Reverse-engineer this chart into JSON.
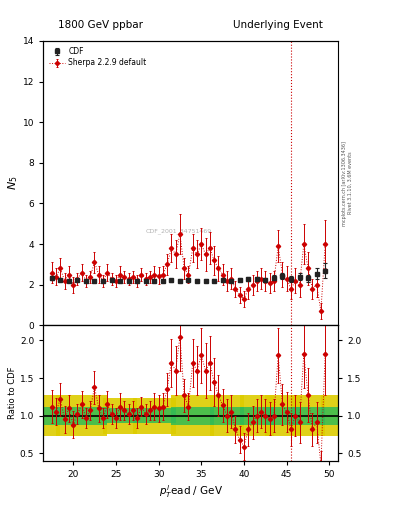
{
  "title_left": "1800 GeV ppbar",
  "title_right": "Underlying Event",
  "ylabel_main": "$N_5$",
  "ylabel_ratio": "Ratio to CDF",
  "xlabel": "$p_T^l$ead / GeV",
  "xlim": [
    16.5,
    51
  ],
  "ylim_main": [
    0,
    14
  ],
  "ylim_ratio": [
    0.4,
    2.2
  ],
  "yticks_main": [
    0,
    2,
    4,
    6,
    8,
    10,
    12,
    14
  ],
  "yticks_ratio": [
    0.5,
    1.0,
    1.5,
    2.0
  ],
  "watermark": "CDF_2001_84751469",
  "right_label": "Rivet 3.1.10, 3.6M events",
  "right_label2": "mcplots.cern.ch [arXiv:1306.3436]",
  "vline_x": 45.5,
  "cdf_x": [
    17.5,
    18.5,
    19.5,
    20.5,
    21.5,
    22.5,
    23.5,
    24.5,
    25.5,
    26.5,
    27.5,
    28.5,
    29.5,
    30.5,
    31.5,
    32.5,
    33.5,
    34.5,
    35.5,
    36.5,
    37.5,
    38.5,
    39.5,
    40.5,
    41.5,
    42.5,
    43.5,
    44.5,
    45.5,
    46.5,
    47.5,
    48.5,
    49.5
  ],
  "cdf_y": [
    2.35,
    2.25,
    2.2,
    2.25,
    2.2,
    2.2,
    2.2,
    2.25,
    2.2,
    2.2,
    2.2,
    2.2,
    2.2,
    2.2,
    2.22,
    2.2,
    2.25,
    2.2,
    2.2,
    2.2,
    2.22,
    2.2,
    2.25,
    2.28,
    2.3,
    2.22,
    2.35,
    2.45,
    2.28,
    2.4,
    2.32,
    2.55,
    2.7
  ],
  "cdf_yerr": [
    0.1,
    0.08,
    0.07,
    0.07,
    0.07,
    0.07,
    0.07,
    0.07,
    0.07,
    0.07,
    0.07,
    0.07,
    0.07,
    0.07,
    0.07,
    0.07,
    0.07,
    0.07,
    0.07,
    0.07,
    0.07,
    0.07,
    0.07,
    0.08,
    0.1,
    0.1,
    0.12,
    0.15,
    0.13,
    0.18,
    0.18,
    0.28,
    0.35
  ],
  "sherpa_x": [
    17.5,
    18.0,
    18.5,
    19.0,
    19.5,
    20.0,
    20.5,
    21.0,
    21.5,
    22.0,
    22.5,
    23.0,
    23.5,
    24.0,
    24.5,
    25.0,
    25.5,
    26.0,
    26.5,
    27.0,
    27.5,
    28.0,
    28.5,
    29.0,
    29.5,
    30.0,
    30.5,
    31.0,
    31.5,
    32.0,
    32.5,
    33.0,
    33.5,
    34.0,
    34.5,
    35.0,
    35.5,
    36.0,
    36.5,
    37.0,
    37.5,
    38.0,
    38.5,
    39.0,
    39.5,
    40.0,
    40.5,
    41.0,
    41.5,
    42.0,
    42.5,
    43.0,
    43.5,
    44.0,
    44.5,
    45.0,
    45.5,
    46.0,
    46.5,
    47.0,
    47.5,
    48.0,
    48.5,
    49.0,
    49.5
  ],
  "sherpa_y": [
    2.6,
    2.4,
    2.8,
    2.2,
    2.5,
    2.0,
    2.3,
    2.6,
    2.2,
    2.4,
    3.1,
    2.5,
    2.2,
    2.6,
    2.3,
    2.2,
    2.5,
    2.4,
    2.3,
    2.4,
    2.2,
    2.5,
    2.3,
    2.4,
    2.5,
    2.45,
    2.5,
    3.0,
    3.8,
    3.5,
    4.5,
    2.8,
    2.5,
    3.8,
    3.5,
    4.0,
    3.5,
    3.8,
    3.2,
    2.8,
    2.5,
    2.2,
    2.3,
    1.8,
    1.5,
    1.3,
    1.8,
    2.0,
    2.2,
    2.3,
    2.2,
    2.1,
    2.2,
    3.9,
    2.5,
    2.3,
    1.8,
    2.2,
    2.0,
    4.0,
    2.8,
    1.8,
    2.0,
    0.7,
    4.0
  ],
  "sherpa_yerr": [
    0.5,
    0.4,
    0.5,
    0.4,
    0.4,
    0.4,
    0.3,
    0.4,
    0.3,
    0.3,
    0.5,
    0.4,
    0.3,
    0.4,
    0.3,
    0.3,
    0.4,
    0.3,
    0.3,
    0.3,
    0.3,
    0.3,
    0.3,
    0.3,
    0.4,
    0.4,
    0.4,
    0.5,
    0.7,
    0.7,
    1.0,
    0.5,
    0.4,
    0.7,
    0.7,
    0.8,
    0.8,
    0.8,
    0.7,
    0.6,
    0.5,
    0.5,
    0.5,
    0.4,
    0.4,
    0.4,
    0.5,
    0.5,
    0.5,
    0.5,
    0.5,
    0.5,
    0.5,
    0.8,
    0.6,
    0.6,
    0.5,
    0.6,
    0.6,
    1.0,
    0.8,
    0.5,
    0.6,
    0.4,
    1.2
  ],
  "ratio_y": [
    1.12,
    1.05,
    1.22,
    0.95,
    1.1,
    0.88,
    1.02,
    1.15,
    0.97,
    1.07,
    1.38,
    1.1,
    0.97,
    1.15,
    1.02,
    0.97,
    1.12,
    1.07,
    1.02,
    1.07,
    0.97,
    1.12,
    1.02,
    1.07,
    1.12,
    1.1,
    1.12,
    1.35,
    1.7,
    1.6,
    2.05,
    1.27,
    1.12,
    1.7,
    1.6,
    1.8,
    1.6,
    1.7,
    1.45,
    1.27,
    1.14,
    1.0,
    1.05,
    0.82,
    0.68,
    0.59,
    0.82,
    0.91,
    1.0,
    1.05,
    1.0,
    0.96,
    1.0,
    1.8,
    1.15,
    1.05,
    0.82,
    1.0,
    0.91,
    1.82,
    1.27,
    0.82,
    0.91,
    0.32,
    1.82
  ],
  "ratio_yerr": [
    0.22,
    0.18,
    0.22,
    0.18,
    0.18,
    0.18,
    0.13,
    0.18,
    0.13,
    0.13,
    0.22,
    0.18,
    0.13,
    0.18,
    0.13,
    0.13,
    0.18,
    0.13,
    0.13,
    0.13,
    0.13,
    0.13,
    0.13,
    0.13,
    0.18,
    0.18,
    0.18,
    0.22,
    0.32,
    0.32,
    0.45,
    0.22,
    0.18,
    0.32,
    0.32,
    0.36,
    0.36,
    0.36,
    0.32,
    0.27,
    0.22,
    0.22,
    0.22,
    0.18,
    0.18,
    0.18,
    0.22,
    0.22,
    0.22,
    0.22,
    0.22,
    0.22,
    0.22,
    0.36,
    0.27,
    0.27,
    0.22,
    0.27,
    0.27,
    0.45,
    0.36,
    0.22,
    0.27,
    0.18,
    0.54
  ],
  "green_band_centers": [
    17.5,
    19.5,
    22.5,
    25.5,
    29.5,
    34.0,
    38.0,
    41.5,
    44.5,
    47.5,
    50.5
  ],
  "green_band_widths": [
    2.0,
    3.0,
    3.0,
    4.0,
    5.0,
    5.0,
    4.0,
    4.0,
    4.0,
    4.0,
    3.0
  ],
  "green_low": [
    0.88,
    0.88,
    0.88,
    0.9,
    0.9,
    0.88,
    0.88,
    0.88,
    0.88,
    0.88,
    0.88
  ],
  "green_high": [
    1.12,
    1.12,
    1.12,
    1.1,
    1.1,
    1.12,
    1.12,
    1.12,
    1.12,
    1.12,
    1.12
  ],
  "yellow_low": [
    0.73,
    0.73,
    0.73,
    0.76,
    0.76,
    0.73,
    0.73,
    0.73,
    0.73,
    0.73,
    0.73
  ],
  "yellow_high": [
    1.27,
    1.27,
    1.27,
    1.24,
    1.24,
    1.27,
    1.27,
    1.27,
    1.27,
    1.27,
    1.27
  ],
  "cdf_color": "#222222",
  "sherpa_color": "#cc0000",
  "green_color": "#33bb55",
  "yellow_color": "#ddcc00",
  "bg_color": "#ffffff"
}
